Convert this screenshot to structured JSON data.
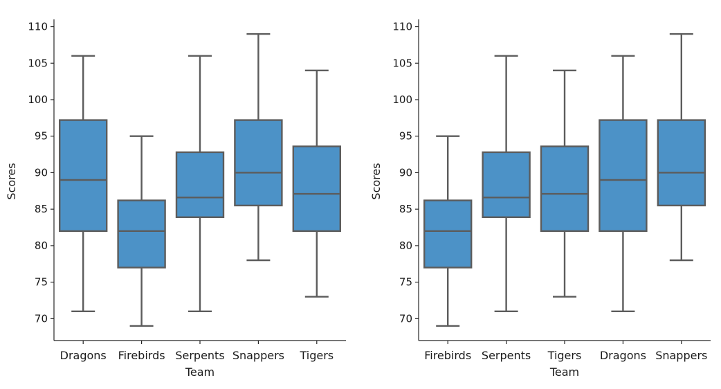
{
  "chart_data": [
    {
      "type": "box",
      "xlabel": "Team",
      "ylabel": "Scores",
      "ylim": [
        67,
        111
      ],
      "yticks": [
        70,
        75,
        80,
        85,
        90,
        95,
        100,
        105,
        110
      ],
      "color": "#4c92c7",
      "categories": [
        "Dragons",
        "Firebirds",
        "Serpents",
        "Snappers",
        "Tigers"
      ],
      "boxes": [
        {
          "min": 71,
          "q1": 82,
          "median": 89,
          "q3": 97.2,
          "max": 106
        },
        {
          "min": 69,
          "q1": 77,
          "median": 82,
          "q3": 86.2,
          "max": 95
        },
        {
          "min": 71,
          "q1": 83.9,
          "median": 86.6,
          "q3": 92.8,
          "max": 106
        },
        {
          "min": 78,
          "q1": 85.5,
          "median": 90,
          "q3": 97.2,
          "max": 109
        },
        {
          "min": 73,
          "q1": 82,
          "median": 87.1,
          "q3": 93.6,
          "max": 104
        }
      ]
    },
    {
      "type": "box",
      "xlabel": "Team",
      "ylabel": "Scores",
      "ylim": [
        67,
        111
      ],
      "yticks": [
        70,
        75,
        80,
        85,
        90,
        95,
        100,
        105,
        110
      ],
      "color": "#4c92c7",
      "categories": [
        "Firebirds",
        "Serpents",
        "Tigers",
        "Dragons",
        "Snappers"
      ],
      "boxes": [
        {
          "min": 69,
          "q1": 77,
          "median": 82,
          "q3": 86.2,
          "max": 95
        },
        {
          "min": 71,
          "q1": 83.9,
          "median": 86.6,
          "q3": 92.8,
          "max": 106
        },
        {
          "min": 73,
          "q1": 82,
          "median": 87.1,
          "q3": 93.6,
          "max": 104
        },
        {
          "min": 71,
          "q1": 82,
          "median": 89,
          "q3": 97.2,
          "max": 106
        },
        {
          "min": 78,
          "q1": 85.5,
          "median": 90,
          "q3": 97.2,
          "max": 109
        }
      ]
    }
  ]
}
